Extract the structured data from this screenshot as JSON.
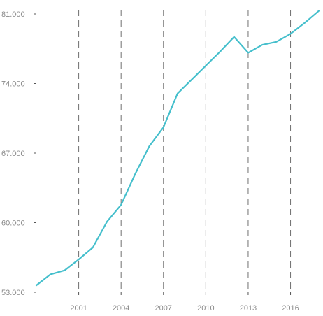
{
  "chart_data": {
    "type": "line",
    "title": "",
    "xlabel": "",
    "ylabel": "",
    "xlim": [
      1998,
      2018.3
    ],
    "ylim": [
      53000,
      81000
    ],
    "x_ticks": [
      2001,
      2004,
      2007,
      2010,
      2013,
      2016
    ],
    "x_tick_labels": [
      "2001",
      "2004",
      "2007",
      "2010",
      "2013",
      "2016"
    ],
    "y_ticks": [
      53000,
      60000,
      67000,
      74000,
      81000
    ],
    "y_tick_labels": [
      "53.000",
      "60.000",
      "67.000",
      "74.000",
      "81.000"
    ],
    "grid": "vertical dashed lines at x ticks",
    "line_color": "#45bfcc",
    "grid_color": "#707070",
    "tick_color": "#8a8a8a",
    "series": [
      {
        "x": [
          1998,
          1999,
          2000,
          2001,
          2002,
          2003,
          2004,
          2005,
          2006,
          2007,
          2008,
          2009,
          2010,
          2011,
          2012,
          2013,
          2014,
          2015,
          2016,
          2017,
          2018
        ],
        "values": [
          53700,
          54800,
          55200,
          56300,
          57500,
          60100,
          61800,
          64900,
          67700,
          69600,
          73000,
          74400,
          75800,
          77200,
          78700,
          77100,
          77900,
          78200,
          79000,
          80100,
          81300
        ]
      }
    ]
  }
}
